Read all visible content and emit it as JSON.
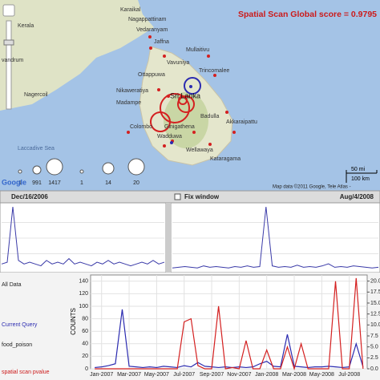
{
  "map": {
    "title": "Spatial Scan Global score = 0.9795",
    "places": [
      "Kerala",
      "Karaikal",
      "Nagappattinam",
      "Vedaranyam",
      "vandrum",
      "Nagercoil",
      "Jaffna",
      "Vavuniya",
      "Mullaitivu",
      "Trincomalee",
      "Ottappuwa",
      "Nikaweratiya",
      "Madampe",
      "Sri Lanka",
      "Colombo",
      "Ginigathena",
      "Badulla",
      "Akkaraipattu",
      "Wadduwa",
      "Wellawaya",
      "Kataragama",
      "Laccadive Sea"
    ],
    "legend_counts": [
      1,
      991,
      1417
    ],
    "legend_scores": [
      1,
      14,
      20
    ],
    "logo": "Google",
    "scale_miles": "50 mi",
    "scale_km": "100 km",
    "attribution": "Map data ©2011 Google, Tele Atlas -"
  },
  "timeline": {
    "start": "Dec/16/2006",
    "fix_window": "Fix window",
    "end": "Aug/4/2008"
  },
  "overview": {
    "panels": [
      {
        "color": "#3a3aa8",
        "values": [
          3,
          4,
          35,
          5,
          3,
          4,
          3,
          2,
          5,
          3,
          4,
          3,
          6,
          3,
          4,
          3,
          2,
          4,
          3,
          5,
          3,
          4,
          3,
          2,
          3,
          4,
          3,
          5,
          3,
          4
        ]
      },
      {
        "color": "#3a3aa8",
        "values": [
          2,
          3,
          4,
          3,
          2,
          5,
          3,
          4,
          3,
          2,
          4,
          3,
          5,
          3,
          4,
          90,
          5,
          3,
          4,
          3,
          6,
          3,
          4,
          3,
          5,
          8,
          3,
          4,
          3,
          5,
          4,
          3,
          2,
          3
        ]
      }
    ]
  },
  "sidebar": {
    "items": [
      "All Data",
      "Current Query",
      "food_poison",
      "spatial scan pvalue"
    ]
  },
  "chart_data": {
    "type": "line",
    "y_label": "COUNTS",
    "x": [
      -0.5,
      0,
      0.5,
      1,
      1.5,
      2,
      2.5,
      3,
      3.5,
      4,
      4.5,
      5,
      5.5,
      6,
      6.5,
      7,
      7.5,
      8,
      8.5,
      9,
      9.5,
      10,
      10.5,
      11,
      11.5,
      12,
      12.5,
      13,
      13.5,
      14,
      14.5,
      15,
      15.5,
      16,
      16.5,
      17,
      17.5,
      18,
      18.5,
      19
    ],
    "series": [
      {
        "color": "#2b2bb0",
        "values": [
          2,
          3,
          5,
          8,
          95,
          4,
          3,
          2,
          3,
          2,
          4,
          3,
          2,
          5,
          3,
          10,
          4,
          3,
          2,
          3,
          2,
          3,
          2,
          3,
          8,
          12,
          4,
          3,
          55,
          4,
          3,
          2,
          3,
          3,
          4,
          3,
          2,
          3,
          40,
          3
        ]
      },
      {
        "color": "#d42020",
        "values": [
          0,
          0,
          0,
          0,
          0,
          0,
          0,
          0,
          0,
          0,
          0,
          0,
          0,
          75,
          80,
          5,
          0,
          0,
          100,
          0,
          2,
          0,
          45,
          0,
          0,
          30,
          0,
          0,
          35,
          0,
          40,
          0,
          0,
          0,
          0,
          140,
          0,
          0,
          145,
          0
        ]
      }
    ],
    "xlim": [
      -0.8,
      19.3
    ],
    "xticks": [
      {
        "value": 0,
        "label": "Jan-2007"
      },
      {
        "value": 2,
        "label": "Mar-2007"
      },
      {
        "value": 4,
        "label": "May-2007"
      },
      {
        "value": 6,
        "label": "Jul-2007"
      },
      {
        "value": 8,
        "label": "Sep-2007"
      },
      {
        "value": 10,
        "label": "Nov-2007"
      },
      {
        "value": 12,
        "label": "Jan-2008"
      },
      {
        "value": 14,
        "label": "Mar-2008"
      },
      {
        "value": 16,
        "label": "May-2008"
      },
      {
        "value": 18,
        "label": "Jul-2008"
      }
    ],
    "ylim": [
      0,
      150
    ],
    "yticks": [
      0,
      20,
      40,
      60,
      80,
      100,
      120,
      140
    ],
    "y2lim": [
      0,
      21.4
    ],
    "y2ticks": [
      {
        "value": 0,
        "label": "0.0"
      },
      2.5,
      {
        "value": 5,
        "label": "5.0"
      },
      7.5,
      {
        "value": 10,
        "label": "10.0"
      },
      12.5,
      {
        "value": 15,
        "label": "15.0"
      },
      17.5,
      {
        "value": 20,
        "label": "20.0"
      }
    ],
    "grid": true
  }
}
